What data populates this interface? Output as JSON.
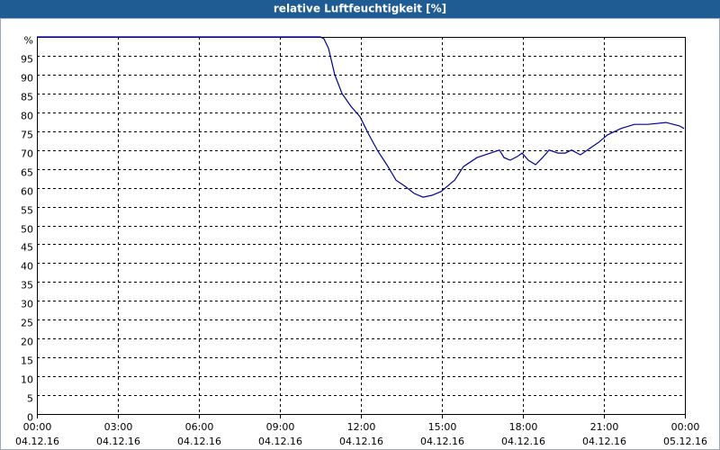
{
  "chart_data": {
    "type": "line",
    "title": "relative Luftfeuchtigkeit [%]",
    "xlim": [
      0,
      24
    ],
    "xticks": [
      {
        "value": 0,
        "label": "00:00"
      },
      {
        "value": 3,
        "label": "03:00"
      },
      {
        "value": 6,
        "label": "06:00"
      },
      {
        "value": 9,
        "label": "09:00"
      },
      {
        "value": 12,
        "label": "12:00"
      },
      {
        "value": 15,
        "label": "15:00"
      },
      {
        "value": 18,
        "label": "18:00"
      },
      {
        "value": 21,
        "label": "21:00"
      },
      {
        "value": 24,
        "label": "00:00"
      }
    ],
    "xtick_dates": [
      "04.12.16",
      "04.12.16",
      "04.12.16",
      "04.12.16",
      "04.12.16",
      "04.12.16",
      "04.12.16",
      "04.12.16",
      "05.12.16"
    ],
    "ylim": [
      0,
      100
    ],
    "yticks": [
      0,
      5,
      10,
      15,
      20,
      25,
      30,
      35,
      40,
      45,
      50,
      55,
      60,
      65,
      70,
      75,
      80,
      85,
      90,
      95,
      {
        "value": 100,
        "label": "%"
      }
    ],
    "grid": true,
    "series": [
      {
        "name": "relative Luftfeuchtigkeit",
        "color": "#0000a0",
        "x": [
          0,
          10.5,
          10.63,
          10.8,
          11.03,
          11.3,
          11.63,
          11.97,
          12.3,
          12.63,
          12.97,
          13.3,
          13.63,
          13.97,
          14.3,
          14.63,
          14.97,
          15.3,
          15.47,
          15.8,
          16.3,
          16.8,
          17.13,
          17.3,
          17.53,
          17.8,
          17.97,
          18.2,
          18.47,
          18.73,
          18.97,
          19.3,
          19.57,
          19.8,
          20.13,
          20.47,
          20.8,
          21.13,
          21.63,
          22.13,
          22.63,
          23.3,
          23.8,
          23.97
        ],
        "values": [
          100,
          100,
          99.5,
          97,
          90,
          85,
          81.6,
          78.8,
          74,
          69.7,
          66,
          62,
          60.4,
          58.5,
          57.5,
          58,
          59,
          61,
          62,
          65.6,
          68,
          69.2,
          70,
          68,
          67.3,
          68.3,
          69.2,
          67.3,
          66.1,
          68,
          70,
          69.2,
          69.2,
          70,
          68.7,
          70.4,
          72,
          74,
          75.7,
          76.8,
          76.8,
          77.3,
          76.4,
          75.7
        ]
      }
    ]
  }
}
